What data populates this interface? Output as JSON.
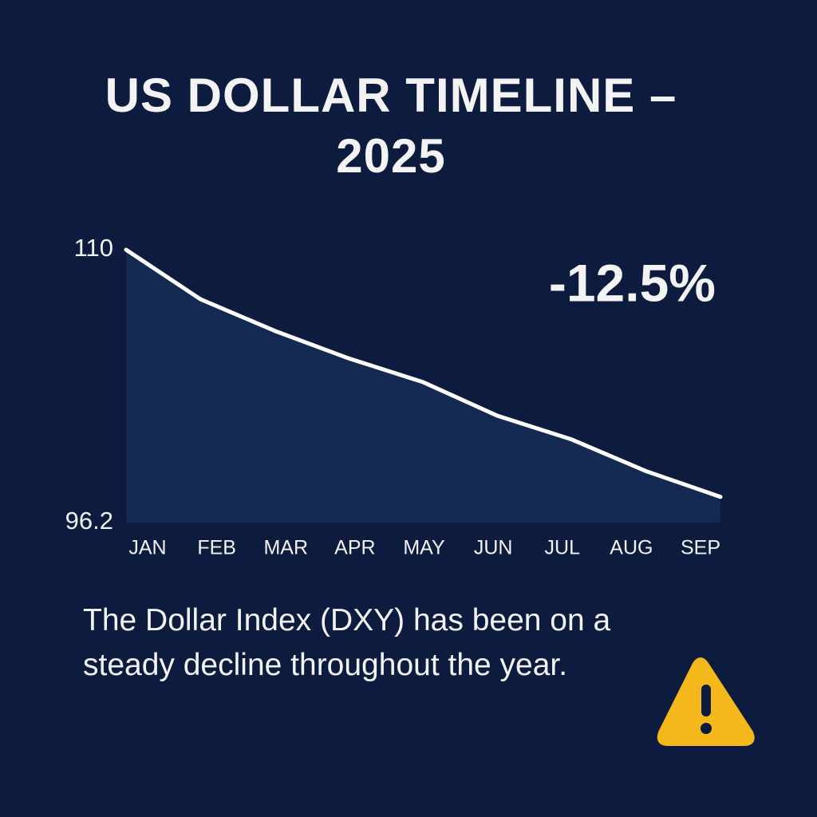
{
  "chart_data": {
    "type": "area",
    "title": "US DOLLAR TIMELINE – 2025",
    "categories": [
      "JAN",
      "FEB",
      "MAR",
      "APR",
      "MAY",
      "JUN",
      "JUL",
      "AUG",
      "SEP"
    ],
    "values": [
      110,
      107.5,
      105.9,
      104.5,
      103.3,
      101.6,
      100.4,
      98.8,
      97.5
    ],
    "color": "#ffffff",
    "fill": "#142a52",
    "ylim": [
      96.2,
      110
    ],
    "yticks": [
      96.2,
      110
    ],
    "annotation": "-12.5%",
    "description": "The Dollar Index (DXY) has been on a steady decline throughout the year."
  }
}
